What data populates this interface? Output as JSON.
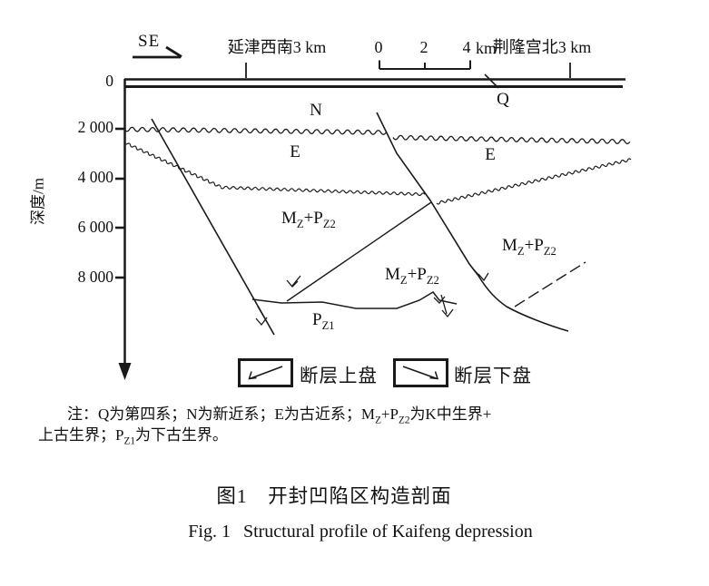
{
  "header": {
    "direction_label": "SE",
    "location_left": "延津西南3 km",
    "location_right": "荆隆宫北3 km",
    "scale": {
      "tick0": "0",
      "tick2": "2",
      "tick4": "4",
      "unit": "km"
    }
  },
  "axis": {
    "title": "深度/m",
    "ticks": [
      "0",
      "2 000",
      "4 000",
      "6 000",
      "8 000"
    ]
  },
  "strata_labels": {
    "q": "Q",
    "n": "N",
    "e": "E",
    "mzpz2": {
      "b1": "M",
      "s1": "Z",
      "b2": "+P",
      "s2": "Z2"
    },
    "pz1": {
      "b1": "P",
      "s1": "Z1"
    }
  },
  "legend": {
    "hanging_wall": "断层上盘",
    "footwall": "断层下盘"
  },
  "note": {
    "part1": "注：Q为第四系；N为新近系；E为古近系；M",
    "sub1": "Z",
    "part2": "+P",
    "sub2": "Z2",
    "part3": "为K中生界+",
    "part4": "上古生界；P",
    "sub3": "Z1",
    "part5": "为下古生界。"
  },
  "caption": {
    "zh": "图1　开封凹陷区构造剖面",
    "en_prefix": "Fig. 1",
    "en_text": "Structural profile of Kaifeng depression"
  },
  "colors": {
    "ink": "#1a1a1a",
    "background": "#ffffff"
  }
}
